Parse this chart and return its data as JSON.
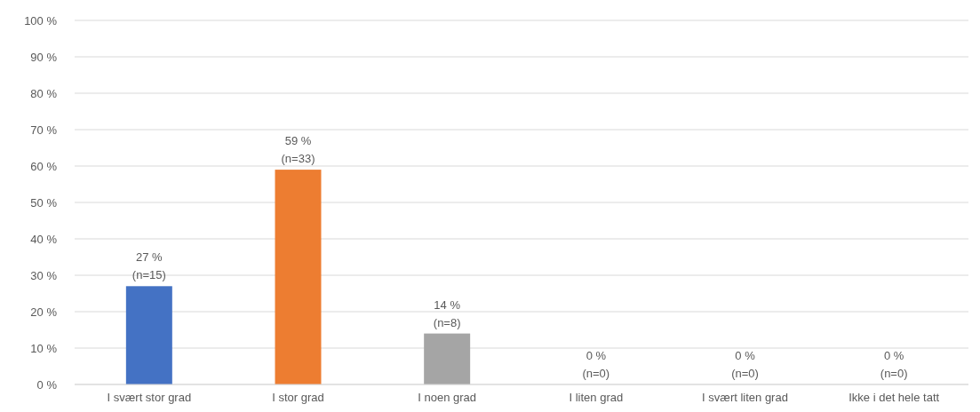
{
  "chart_data": {
    "type": "bar",
    "categories": [
      "I svært stor grad",
      "I stor grad",
      "I noen grad",
      "I liten grad",
      "I svært liten grad",
      "Ikke i det hele tatt"
    ],
    "values": [
      27,
      59,
      14,
      0,
      0,
      0
    ],
    "colors": [
      "#4472c4",
      "#ed7d31",
      "#a5a5a5",
      "#ffc000",
      "#5b9bd5",
      "#70ad47"
    ],
    "value_labels": [
      "27 %\n(n=15)",
      "59 %\n(n=33)",
      "14 %\n(n=8)",
      "0 %\n(n=0)",
      "0 %\n(n=0)",
      "0 %\n(n=0)"
    ],
    "ylim": [
      0,
      100
    ],
    "yticks": [
      {
        "value": 0,
        "label": "0 %"
      },
      {
        "value": 10,
        "label": "10 %"
      },
      {
        "value": 20,
        "label": "20 %"
      },
      {
        "value": 30,
        "label": "30 %"
      },
      {
        "value": 40,
        "label": "40 %"
      },
      {
        "value": 50,
        "label": "50 %"
      },
      {
        "value": 60,
        "label": "60 %"
      },
      {
        "value": 70,
        "label": "70 %"
      },
      {
        "value": 80,
        "label": "80 %"
      },
      {
        "value": 90,
        "label": "90 %"
      },
      {
        "value": 100,
        "label": "100 %"
      }
    ],
    "grid": "y"
  }
}
